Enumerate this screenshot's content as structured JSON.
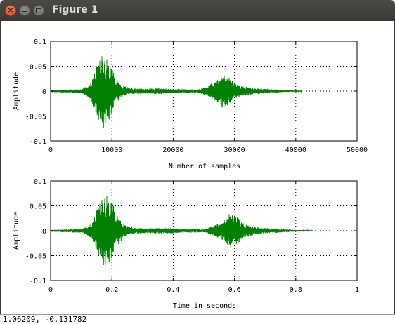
{
  "window": {
    "title": "Figure 1",
    "close_icon": "close-icon",
    "minimize_icon": "minimize-icon",
    "maximize_icon": "maximize-icon"
  },
  "status": {
    "coordinates": "1.06209, -0.131782"
  },
  "colors": {
    "signal": "#008000",
    "titlebar": "#3c3b37"
  },
  "chart_data": [
    {
      "type": "line",
      "title": "",
      "xlabel": "Number of samples",
      "ylabel": "Amplitude",
      "xlim": [
        0,
        50000
      ],
      "ylim": [
        -0.1,
        0.1
      ],
      "xticks": [
        0,
        10000,
        20000,
        30000,
        40000,
        50000
      ],
      "xtick_labels": [
        "0",
        "10000",
        "20000",
        "30000",
        "40000",
        "50000"
      ],
      "yticks": [
        0.1,
        0.05,
        0,
        -0.05,
        -0.1
      ],
      "ytick_labels": [
        "0.1",
        "0.05",
        "0",
        "-0.05",
        "-0.1"
      ],
      "grid": true,
      "signal_end": 41000,
      "envelope": [
        [
          0,
          0.002
        ],
        [
          5000,
          0.004
        ],
        [
          6500,
          0.015
        ],
        [
          7500,
          0.05
        ],
        [
          8500,
          0.075
        ],
        [
          9500,
          0.06
        ],
        [
          10500,
          0.03
        ],
        [
          11500,
          0.012
        ],
        [
          13000,
          0.006
        ],
        [
          15000,
          0.005
        ],
        [
          18000,
          0.006
        ],
        [
          20000,
          0.004
        ],
        [
          22000,
          0.004
        ],
        [
          24000,
          0.003
        ],
        [
          25500,
          0.01
        ],
        [
          27000,
          0.02
        ],
        [
          28000,
          0.035
        ],
        [
          29000,
          0.03
        ],
        [
          30500,
          0.012
        ],
        [
          33000,
          0.006
        ],
        [
          36000,
          0.004
        ],
        [
          38000,
          0.002
        ],
        [
          41000,
          0.001
        ]
      ]
    },
    {
      "type": "line",
      "title": "",
      "xlabel": "Time in seconds",
      "ylabel": "Amplitude",
      "xlim": [
        0,
        1
      ],
      "ylim": [
        -0.1,
        0.1
      ],
      "xticks": [
        0,
        0.2,
        0.4,
        0.6,
        0.8,
        1
      ],
      "xtick_labels": [
        "0",
        "0.2",
        "0.4",
        "0.6",
        "0.8",
        "1"
      ],
      "yticks": [
        0.1,
        0.05,
        0,
        -0.05,
        -0.1
      ],
      "ytick_labels": [
        "0.1",
        "0.05",
        "0",
        "-0.05",
        "-0.1"
      ],
      "grid": true,
      "signal_end": 0.854,
      "envelope": [
        [
          0,
          0.002
        ],
        [
          0.104,
          0.004
        ],
        [
          0.135,
          0.015
        ],
        [
          0.156,
          0.05
        ],
        [
          0.177,
          0.075
        ],
        [
          0.198,
          0.06
        ],
        [
          0.219,
          0.03
        ],
        [
          0.24,
          0.012
        ],
        [
          0.271,
          0.006
        ],
        [
          0.313,
          0.005
        ],
        [
          0.375,
          0.006
        ],
        [
          0.417,
          0.004
        ],
        [
          0.458,
          0.004
        ],
        [
          0.5,
          0.003
        ],
        [
          0.531,
          0.01
        ],
        [
          0.563,
          0.02
        ],
        [
          0.583,
          0.035
        ],
        [
          0.604,
          0.03
        ],
        [
          0.635,
          0.012
        ],
        [
          0.688,
          0.006
        ],
        [
          0.75,
          0.004
        ],
        [
          0.792,
          0.002
        ],
        [
          0.854,
          0.001
        ]
      ]
    }
  ]
}
